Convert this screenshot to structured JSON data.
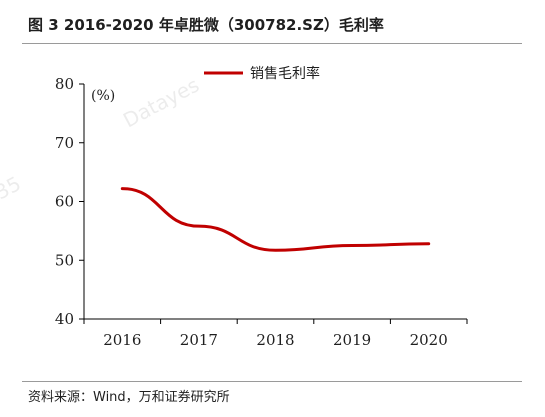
{
  "header": {
    "figure_title": "图 3    2016-2020 年卓胜微（300782.SZ）毛利率"
  },
  "footer": {
    "source": "资料来源：Wind，万和证券研究所"
  },
  "watermark": {
    "text": "Datayes",
    "fragment": "35"
  },
  "chart_data": {
    "type": "line",
    "title": "",
    "xlabel": "",
    "ylabel": "",
    "y_unit_label": "(%)",
    "x": [
      "2016",
      "2017",
      "2018",
      "2019",
      "2020"
    ],
    "series": [
      {
        "name": "销售毛利率",
        "values": [
          62.2,
          55.8,
          51.7,
          52.5,
          52.8
        ],
        "color": "#c00000"
      }
    ],
    "ylim": [
      40,
      80
    ],
    "yticks": [
      40,
      50,
      60,
      70,
      80
    ],
    "grid": false,
    "legend_position": "top-center"
  }
}
